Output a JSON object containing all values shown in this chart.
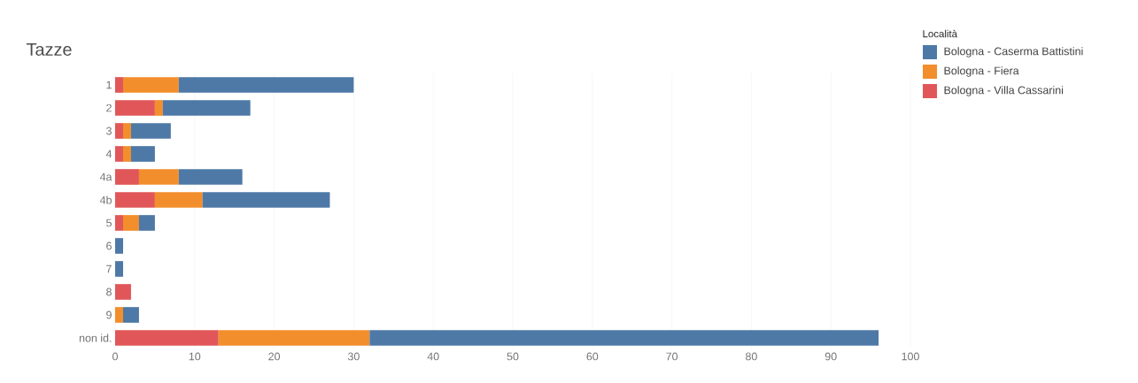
{
  "chart_data": {
    "type": "bar",
    "orientation": "horizontal",
    "stacked": true,
    "title": "Tazze",
    "legend_title": "Località",
    "categories": [
      "1",
      "2",
      "3",
      "4",
      "4a",
      "4b",
      "5",
      "6",
      "7",
      "8",
      "9",
      "non id."
    ],
    "series": [
      {
        "name": "Bologna - Villa Cassarini",
        "color": "#e15759",
        "values": [
          1,
          5,
          1,
          1,
          3,
          5,
          1,
          null,
          null,
          2,
          null,
          13
        ]
      },
      {
        "name": "Bologna - Fiera",
        "color": "#f28e2b",
        "values": [
          7,
          1,
          1,
          1,
          5,
          6,
          2,
          null,
          null,
          null,
          1,
          19
        ]
      },
      {
        "name": "Bologna - Caserma Battistini",
        "color": "#4e79a7",
        "values": [
          22,
          11,
          5,
          3,
          8,
          16,
          2,
          1,
          1,
          null,
          2,
          64
        ]
      }
    ],
    "xlim": [
      0,
      100
    ],
    "xticks": [
      0,
      10,
      20,
      30,
      40,
      50,
      60,
      70,
      80,
      90,
      100
    ],
    "grid": "x",
    "legend": "top right"
  }
}
